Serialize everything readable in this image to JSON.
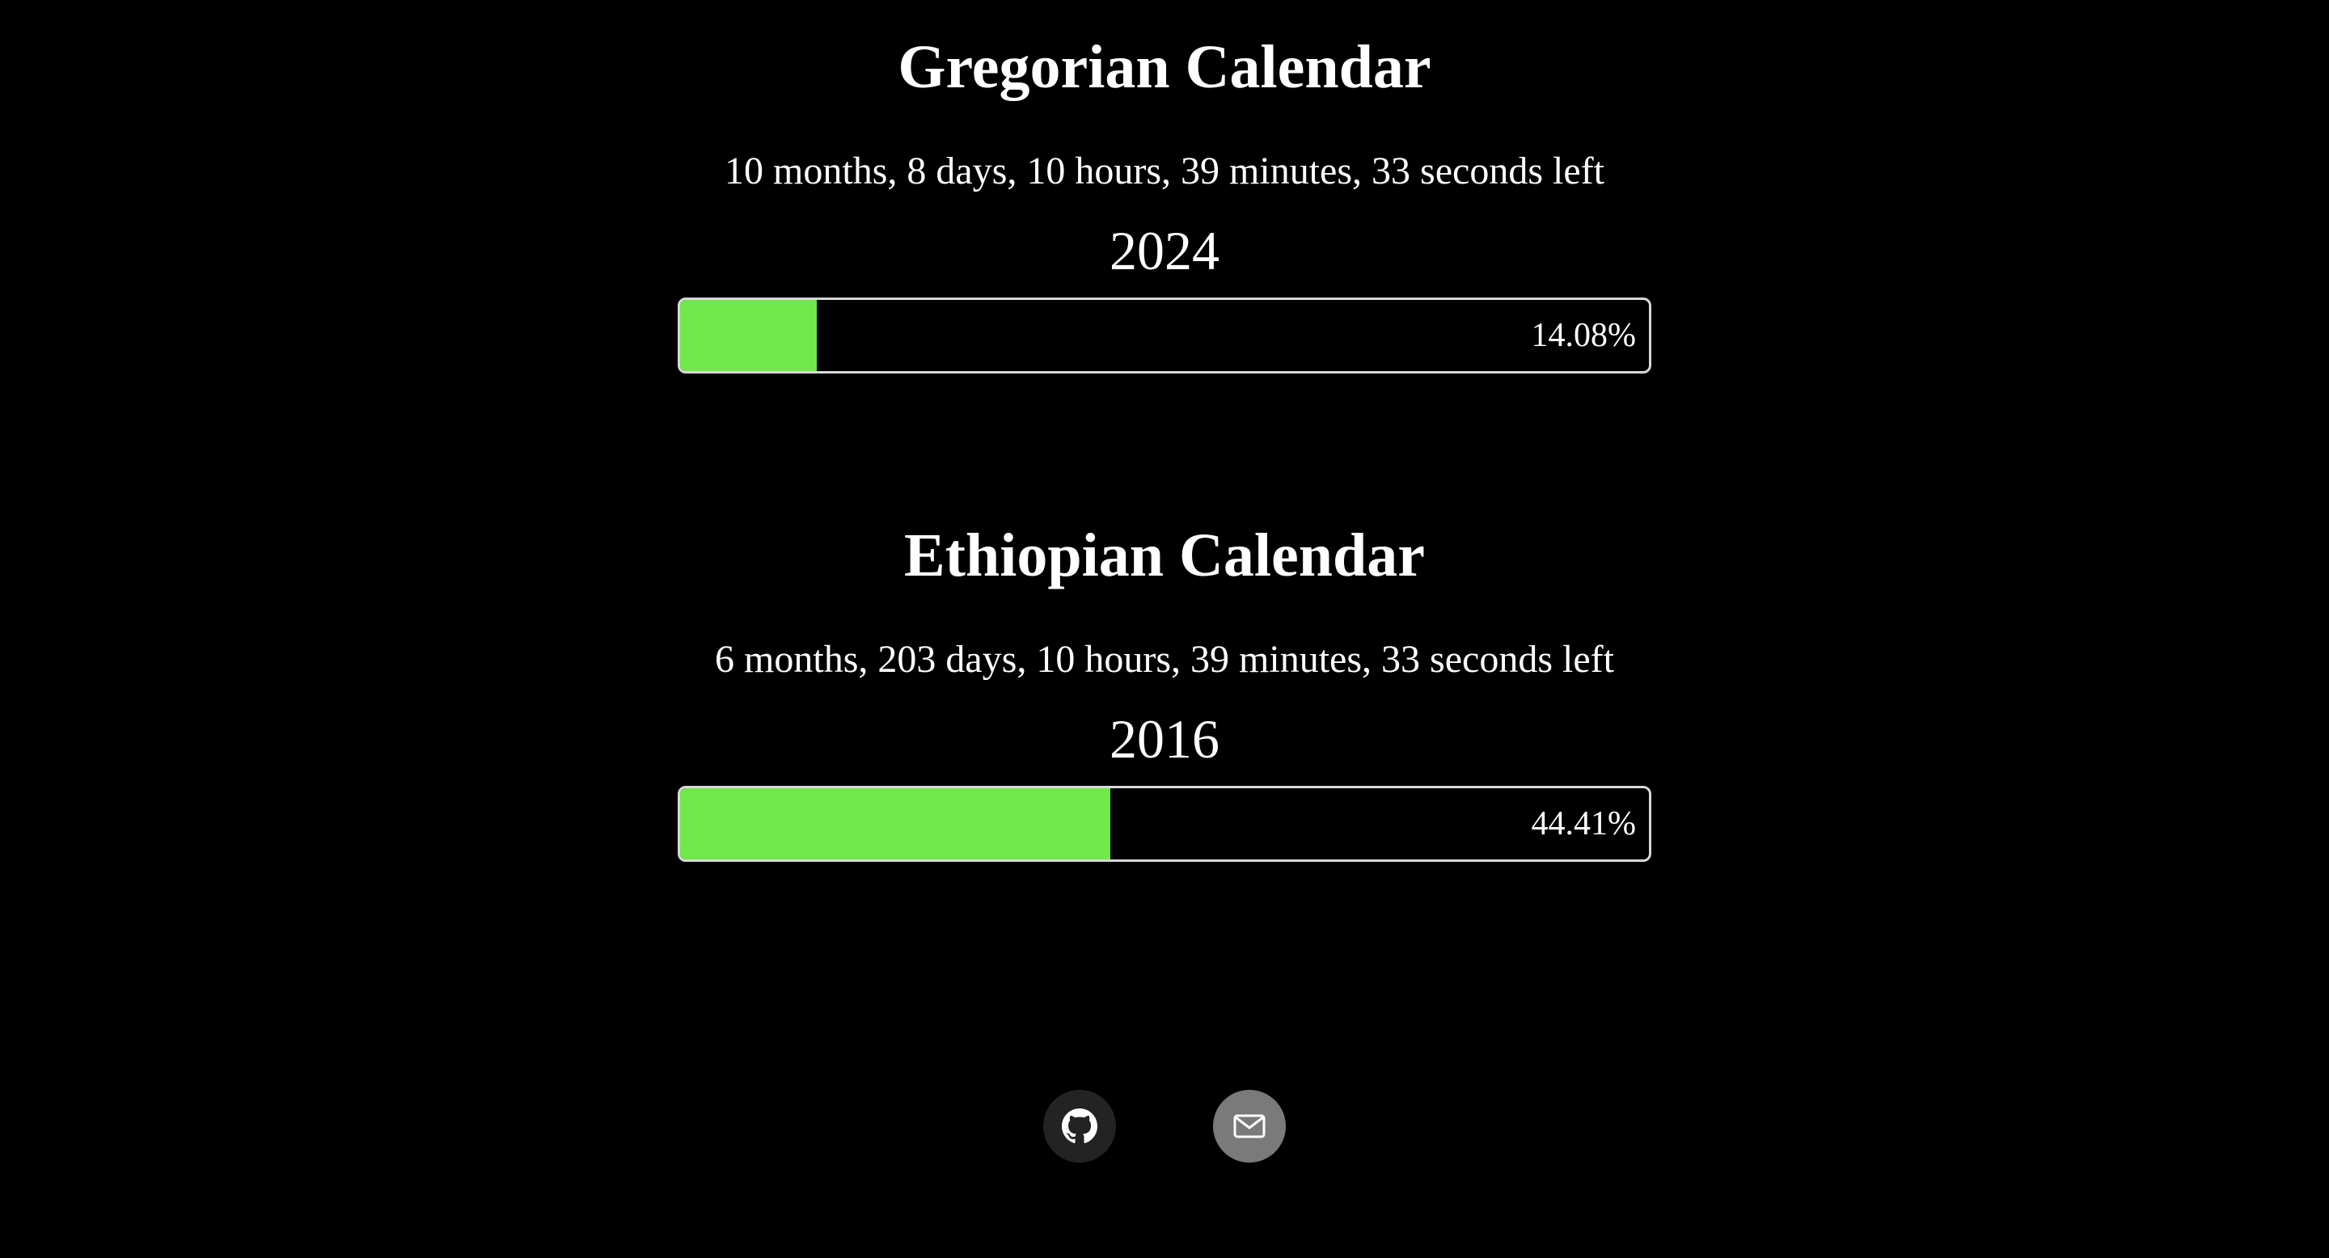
{
  "colors": {
    "background": "#000000",
    "progress_fill": "#70e84a",
    "progress_border": "#d8d8d8",
    "github_button_bg": "#232323",
    "mail_button_bg": "#7a7a7a"
  },
  "gregorian": {
    "title": "Gregorian Calendar",
    "remaining": "10 months, 8 days, 10 hours, 39 minutes, 33 seconds left",
    "year": "2024",
    "progress_label": "14.08%",
    "progress_fraction": 0.1408
  },
  "ethiopian": {
    "title": "Ethiopian Calendar",
    "remaining": "6 months, 203 days, 10 hours, 39 minutes, 33 seconds left",
    "year": "2016",
    "progress_label": "44.41%",
    "progress_fraction": 0.4441
  },
  "footer": {
    "links": [
      {
        "icon": "github-icon"
      },
      {
        "icon": "mail-icon"
      }
    ]
  }
}
